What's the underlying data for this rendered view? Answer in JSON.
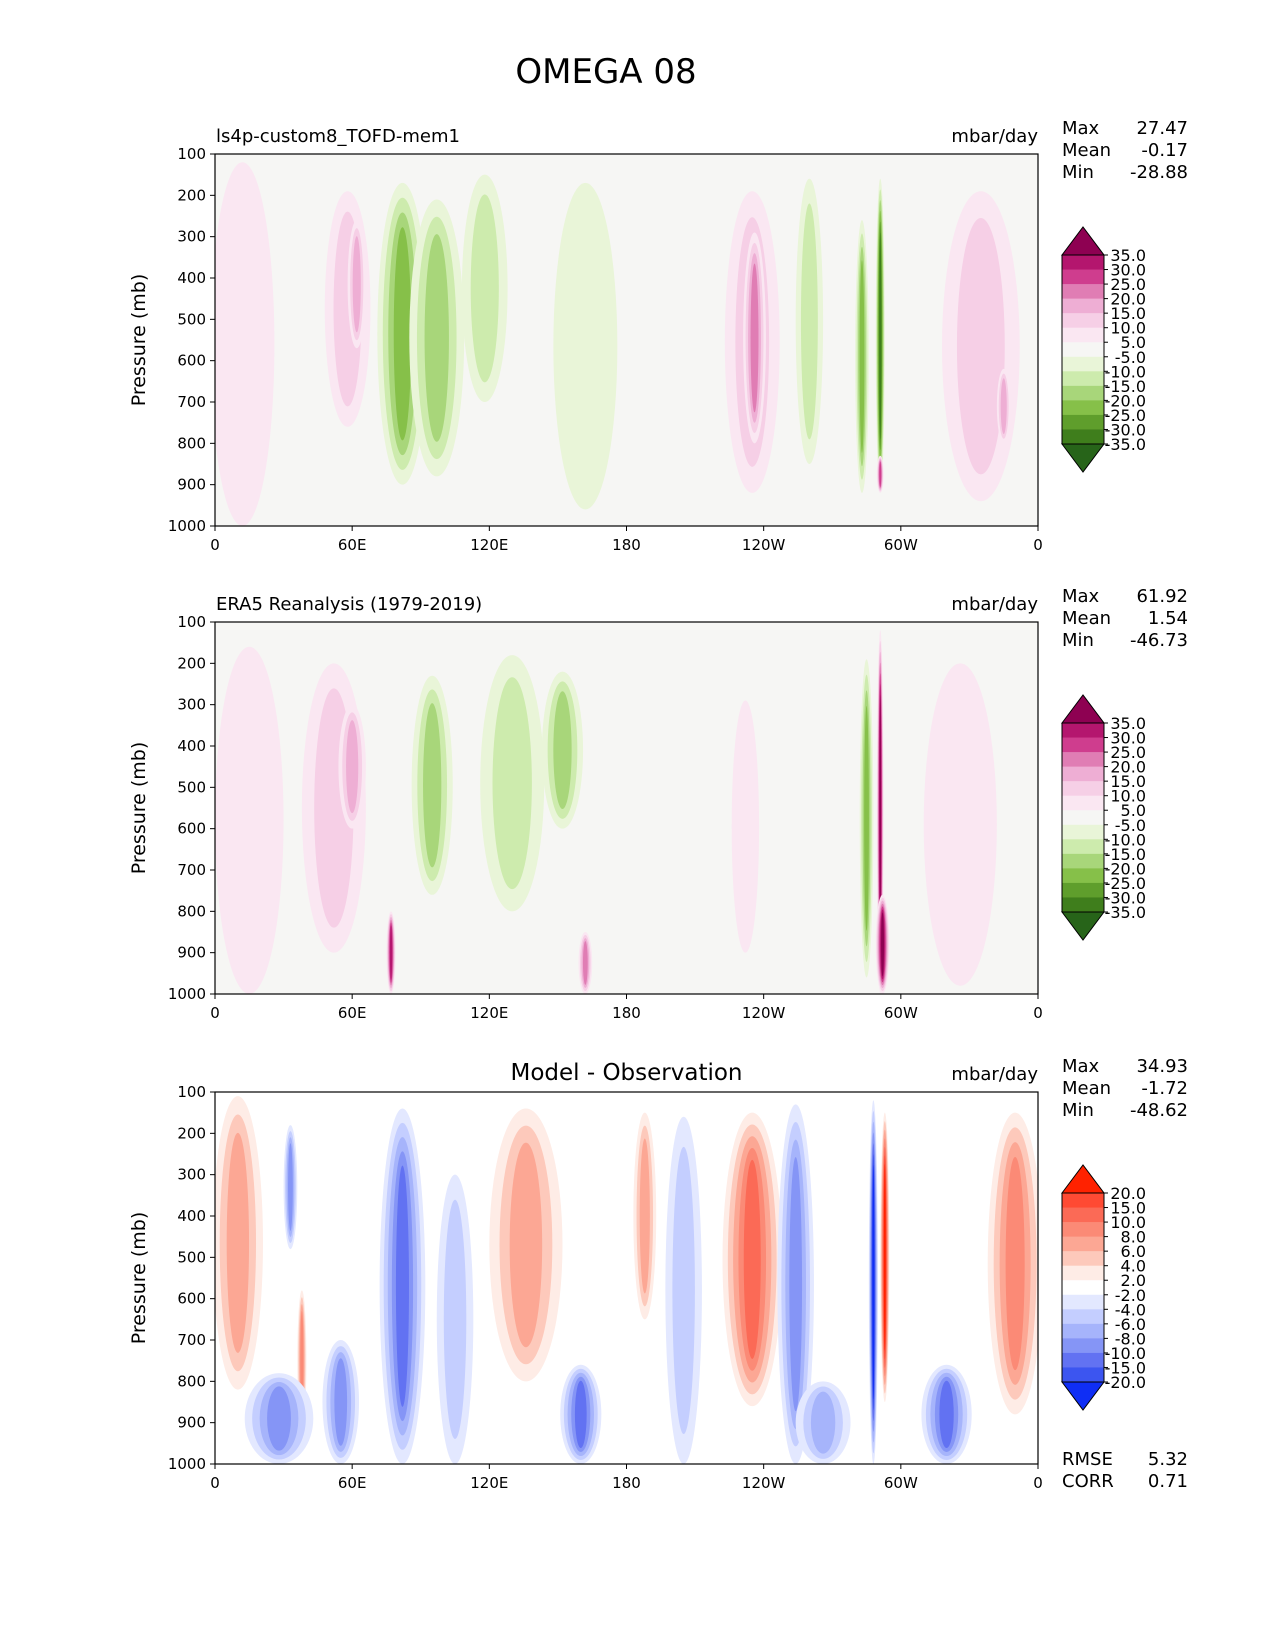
{
  "figure_title": "OMEGA 08",
  "chart_data": [
    {
      "type": "heatmap",
      "panel_id": "test",
      "left_title": "ls4p-custom8_TOFD-mem1",
      "center_title": "",
      "units": "mbar/day",
      "ylabel": "Pressure (mb)",
      "xlabel": "",
      "x_ticks": [
        "0",
        "60E",
        "120E",
        "180",
        "120W",
        "60W",
        "0"
      ],
      "x_range": [
        0,
        360
      ],
      "y_ticks": [
        "100",
        "200",
        "300",
        "400",
        "500",
        "600",
        "700",
        "800",
        "900",
        "1000"
      ],
      "ylim": [
        1000,
        100
      ],
      "stats": [
        {
          "label": "Max",
          "value": "27.47"
        },
        {
          "label": "Mean",
          "value": "-0.17"
        },
        {
          "label": "Min",
          "value": "-28.88"
        }
      ],
      "colorbar": {
        "labels": [
          "35.0",
          "30.0",
          "25.0",
          "20.0",
          "15.0",
          "10.0",
          "5.0",
          "-5.0",
          "-10.0",
          "-15.0",
          "-20.0",
          "-25.0",
          "-30.0",
          "-35.0"
        ],
        "colors": [
          "#8e0152",
          "#b4166e",
          "#cf3d8e",
          "#e07db4",
          "#eeaed4",
          "#f6cfe6",
          "#fae7f2",
          "#f6f6f4",
          "#e9f5d8",
          "#cdebad",
          "#a8d67a",
          "#86c049",
          "#5f9e2c",
          "#3f7e1c",
          "#276419"
        ]
      },
      "features": [
        {
          "lon": 12,
          "p_top": 120,
          "p_bot": 1000,
          "half_width": 14,
          "value": 8
        },
        {
          "lon": 58,
          "p_top": 190,
          "p_bot": 760,
          "half_width": 10,
          "value": 12
        },
        {
          "lon": 62,
          "p_top": 260,
          "p_bot": 570,
          "half_width": 4,
          "value": 18
        },
        {
          "lon": 82,
          "p_top": 170,
          "p_bot": 900,
          "half_width": 11,
          "value": -22
        },
        {
          "lon": 97,
          "p_top": 210,
          "p_bot": 880,
          "half_width": 12,
          "value": -16
        },
        {
          "lon": 118,
          "p_top": 150,
          "p_bot": 700,
          "half_width": 10,
          "value": -10
        },
        {
          "lon": 162,
          "p_top": 170,
          "p_bot": 960,
          "half_width": 14,
          "value": -7
        },
        {
          "lon": 235,
          "p_top": 190,
          "p_bot": 920,
          "half_width": 12,
          "value": 12
        },
        {
          "lon": 236,
          "p_top": 290,
          "p_bot": 800,
          "half_width": 5,
          "value": 20
        },
        {
          "lon": 260,
          "p_top": 160,
          "p_bot": 850,
          "half_width": 6,
          "value": -10
        },
        {
          "lon": 283,
          "p_top": 260,
          "p_bot": 920,
          "half_width": 3,
          "value": -22
        },
        {
          "lon": 291,
          "p_top": 160,
          "p_bot": 920,
          "half_width": 2,
          "value": -30
        },
        {
          "lon": 291,
          "p_top": 830,
          "p_bot": 920,
          "half_width": 1.5,
          "value": 27
        },
        {
          "lon": 335,
          "p_top": 190,
          "p_bot": 940,
          "half_width": 17,
          "value": 10
        },
        {
          "lon": 345,
          "p_top": 620,
          "p_bot": 800,
          "half_width": 3,
          "value": 16
        }
      ]
    },
    {
      "type": "heatmap",
      "panel_id": "reference",
      "left_title": "ERA5 Reanalysis (1979-2019)",
      "center_title": "",
      "units": "mbar/day",
      "ylabel": "Pressure (mb)",
      "xlabel": "",
      "x_ticks": [
        "0",
        "60E",
        "120E",
        "180",
        "120W",
        "60W",
        "0"
      ],
      "x_range": [
        0,
        360
      ],
      "y_ticks": [
        "100",
        "200",
        "300",
        "400",
        "500",
        "600",
        "700",
        "800",
        "900",
        "1000"
      ],
      "ylim": [
        1000,
        100
      ],
      "stats": [
        {
          "label": "Max",
          "value": "61.92"
        },
        {
          "label": "Mean",
          "value": "1.54"
        },
        {
          "label": "Min",
          "value": "-46.73"
        }
      ],
      "colorbar": {
        "labels": [
          "35.0",
          "30.0",
          "25.0",
          "20.0",
          "15.0",
          "10.0",
          "5.0",
          "-5.0",
          "-10.0",
          "-15.0",
          "-20.0",
          "-25.0",
          "-30.0",
          "-35.0"
        ],
        "colors": [
          "#8e0152",
          "#b4166e",
          "#cf3d8e",
          "#e07db4",
          "#eeaed4",
          "#f6cfe6",
          "#fae7f2",
          "#f6f6f4",
          "#e9f5d8",
          "#cdebad",
          "#a8d67a",
          "#86c049",
          "#5f9e2c",
          "#3f7e1c",
          "#276419"
        ]
      },
      "features": [
        {
          "lon": 15,
          "p_top": 160,
          "p_bot": 1000,
          "half_width": 15,
          "value": 7
        },
        {
          "lon": 52,
          "p_top": 200,
          "p_bot": 900,
          "half_width": 14,
          "value": 11
        },
        {
          "lon": 60,
          "p_top": 300,
          "p_bot": 600,
          "half_width": 6,
          "value": 17
        },
        {
          "lon": 77,
          "p_top": 800,
          "p_bot": 1000,
          "half_width": 2,
          "value": 30
        },
        {
          "lon": 95,
          "p_top": 230,
          "p_bot": 760,
          "half_width": 9,
          "value": -17
        },
        {
          "lon": 130,
          "p_top": 180,
          "p_bot": 800,
          "half_width": 14,
          "value": -10
        },
        {
          "lon": 152,
          "p_top": 220,
          "p_bot": 600,
          "half_width": 9,
          "value": -15
        },
        {
          "lon": 162,
          "p_top": 850,
          "p_bot": 1000,
          "half_width": 3,
          "value": 20
        },
        {
          "lon": 232,
          "p_top": 290,
          "p_bot": 900,
          "half_width": 6,
          "value": 6
        },
        {
          "lon": 285,
          "p_top": 190,
          "p_bot": 960,
          "half_width": 3,
          "value": -22
        },
        {
          "lon": 291,
          "p_top": 120,
          "p_bot": 1000,
          "half_width": 1.5,
          "value": 40
        },
        {
          "lon": 292,
          "p_top": 760,
          "p_bot": 1000,
          "half_width": 3,
          "value": 35
        },
        {
          "lon": 326,
          "p_top": 200,
          "p_bot": 980,
          "half_width": 16,
          "value": 8
        }
      ]
    },
    {
      "type": "heatmap",
      "panel_id": "difference",
      "left_title": "",
      "center_title": "Model - Observation",
      "units": "mbar/day",
      "ylabel": "Pressure (mb)",
      "xlabel": "",
      "x_ticks": [
        "0",
        "60E",
        "120E",
        "180",
        "120W",
        "60W",
        "0"
      ],
      "x_range": [
        0,
        360
      ],
      "y_ticks": [
        "100",
        "200",
        "300",
        "400",
        "500",
        "600",
        "700",
        "800",
        "900",
        "1000"
      ],
      "ylim": [
        1000,
        100
      ],
      "stats": [
        {
          "label": "Max",
          "value": "34.93"
        },
        {
          "label": "Mean",
          "value": "-1.72"
        },
        {
          "label": "Min",
          "value": "-48.62"
        }
      ],
      "extra_stats": [
        {
          "label": "RMSE",
          "value": "5.32"
        },
        {
          "label": "CORR",
          "value": "0.71"
        }
      ],
      "colorbar": {
        "labels": [
          "20.0",
          "15.0",
          "10.0",
          "8.0",
          "6.0",
          "4.0",
          "2.0",
          "-2.0",
          "-4.0",
          "-6.0",
          "-8.0",
          "-10.0",
          "-15.0",
          "-20.0"
        ],
        "colors": [
          "#ff2200",
          "#ff4a33",
          "#fb6a56",
          "#fb8a76",
          "#fca794",
          "#fdc9bb",
          "#feece6",
          "#ffffff",
          "#e3e8ff",
          "#c4ceff",
          "#a6b4fb",
          "#8595f6",
          "#6272f2",
          "#3c55f0",
          "#0f2ef5"
        ]
      },
      "features": [
        {
          "lon": 10,
          "p_top": 110,
          "p_bot": 820,
          "half_width": 11,
          "value": 7
        },
        {
          "lon": 33,
          "p_top": 180,
          "p_bot": 480,
          "half_width": 3,
          "value": -8
        },
        {
          "lon": 38,
          "p_top": 580,
          "p_bot": 920,
          "half_width": 2,
          "value": 9
        },
        {
          "lon": 28,
          "p_top": 780,
          "p_bot": 1000,
          "half_width": 15,
          "value": -8
        },
        {
          "lon": 55,
          "p_top": 700,
          "p_bot": 1000,
          "half_width": 8,
          "value": -9
        },
        {
          "lon": 82,
          "p_top": 140,
          "p_bot": 1000,
          "half_width": 10,
          "value": -11
        },
        {
          "lon": 105,
          "p_top": 300,
          "p_bot": 1000,
          "half_width": 8,
          "value": -5
        },
        {
          "lon": 136,
          "p_top": 140,
          "p_bot": 800,
          "half_width": 16,
          "value": 6
        },
        {
          "lon": 160,
          "p_top": 760,
          "p_bot": 1000,
          "half_width": 9,
          "value": -12
        },
        {
          "lon": 188,
          "p_top": 150,
          "p_bot": 650,
          "half_width": 5,
          "value": 7
        },
        {
          "lon": 205,
          "p_top": 160,
          "p_bot": 1000,
          "half_width": 8,
          "value": -4
        },
        {
          "lon": 235,
          "p_top": 150,
          "p_bot": 860,
          "half_width": 13,
          "value": 11
        },
        {
          "lon": 254,
          "p_top": 130,
          "p_bot": 1000,
          "half_width": 8,
          "value": -8
        },
        {
          "lon": 288,
          "p_top": 120,
          "p_bot": 1000,
          "half_width": 2,
          "value": -25
        },
        {
          "lon": 293,
          "p_top": 150,
          "p_bot": 850,
          "half_width": 2,
          "value": 22
        },
        {
          "lon": 266,
          "p_top": 800,
          "p_bot": 1000,
          "half_width": 12,
          "value": -7
        },
        {
          "lon": 320,
          "p_top": 760,
          "p_bot": 1000,
          "half_width": 11,
          "value": -11
        },
        {
          "lon": 350,
          "p_top": 150,
          "p_bot": 880,
          "half_width": 12,
          "value": 8
        }
      ]
    }
  ]
}
